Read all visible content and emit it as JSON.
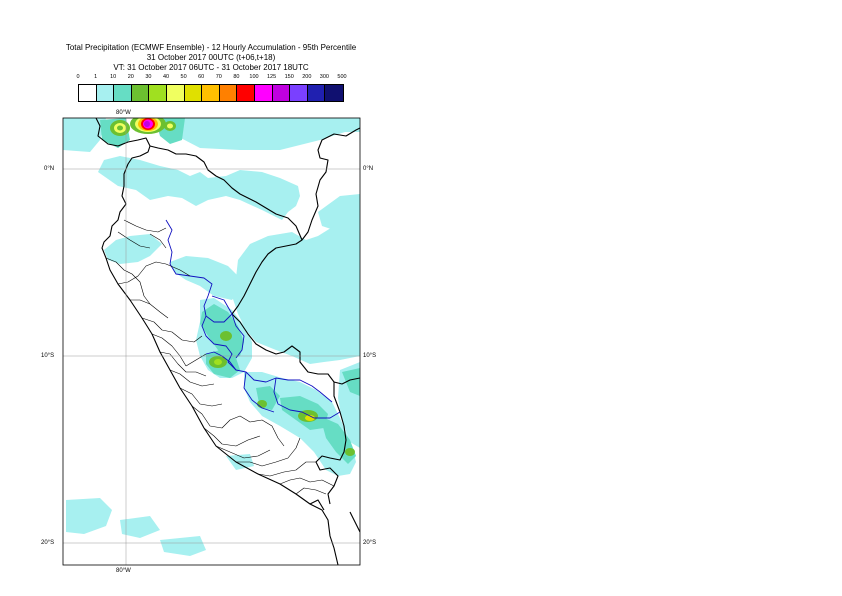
{
  "title": {
    "line1": "Total Precipitation (ECMWF Ensemble) - 12 Hourly Accumulation - 95th Percentile",
    "line2": "31 October 2017 00UTC (t+06,t+18)",
    "line3": "VT: 31 October 2017 06UTC - 31 October 2017 18UTC"
  },
  "legend": {
    "thresholds": [
      "0",
      "1",
      "10",
      "20",
      "30",
      "40",
      "50",
      "60",
      "70",
      "80",
      "100",
      "125",
      "150",
      "200",
      "300",
      "500"
    ],
    "colors": [
      "#ffffff",
      "#a7f0f0",
      "#66ddc4",
      "#6cc030",
      "#a0e020",
      "#f0ff60",
      "#e0e000",
      "#ffc000",
      "#ff8000",
      "#ff0000",
      "#ff00ff",
      "#c000e0",
      "#7a40ff",
      "#2020b0",
      "#101070"
    ]
  },
  "map": {
    "longitude_labels": [
      "80°W",
      "80°W"
    ],
    "latitude_labels_left": [
      "0°N",
      "10°S",
      "20°S"
    ],
    "latitude_labels_right": [
      "0°N",
      "10°S",
      "20°S"
    ]
  }
}
